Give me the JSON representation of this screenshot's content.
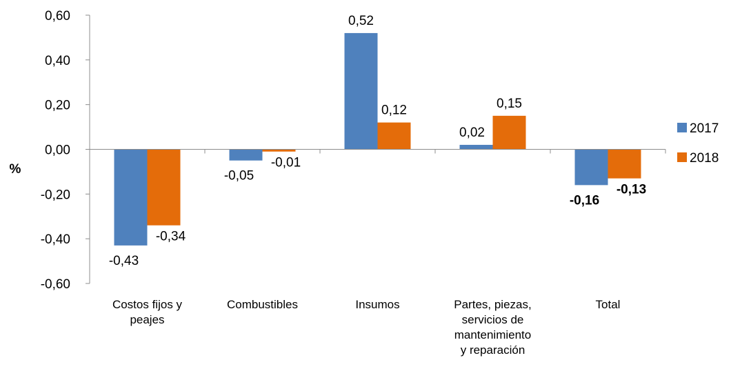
{
  "chart_data": {
    "type": "bar",
    "categories": [
      [
        "Costos fijos y",
        "peajes"
      ],
      [
        "Combustibles"
      ],
      [
        "Insumos"
      ],
      [
        "Partes, piezas,",
        "servicios de",
        "mantenimiento",
        "y reparación"
      ],
      [
        "Total"
      ]
    ],
    "series": [
      {
        "name": "2017",
        "color": "#4F81BD",
        "values": [
          -0.43,
          -0.05,
          0.52,
          0.02,
          -0.16
        ],
        "labels": [
          "-0,43",
          "-0,05",
          "0,52",
          "0,02",
          "-0,16"
        ]
      },
      {
        "name": "2018",
        "color": "#E46C0A",
        "values": [
          -0.34,
          -0.01,
          0.12,
          0.15,
          -0.13
        ],
        "labels": [
          "-0,34",
          "-0,01",
          "0,12",
          "0,15",
          "-0,13"
        ]
      }
    ],
    "bold_label_category": 4,
    "ylabel": "%",
    "ylim": [
      -0.6,
      0.6
    ],
    "yticks": [
      0.6,
      0.4,
      0.2,
      0.0,
      -0.2,
      -0.4,
      -0.6
    ],
    "ytick_labels": [
      "0,60",
      "0,40",
      "0,20",
      "0,00",
      "-0,20",
      "-0,40",
      "-0,60"
    ],
    "grid": false,
    "legend": "right"
  }
}
